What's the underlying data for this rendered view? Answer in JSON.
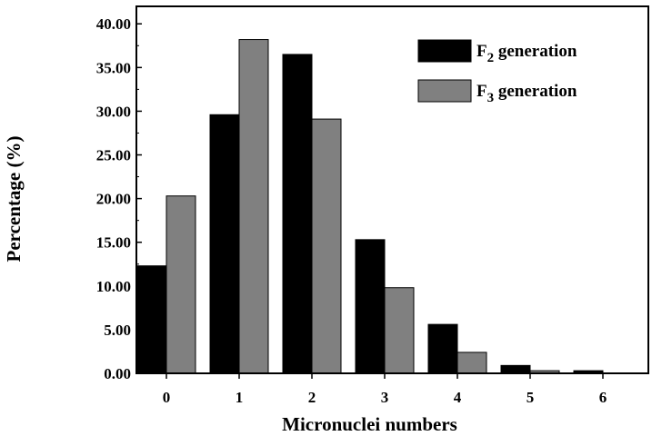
{
  "chart_data": {
    "type": "bar",
    "categories": [
      "0",
      "1",
      "2",
      "3",
      "4",
      "5",
      "6"
    ],
    "series": [
      {
        "name": "F2 generation",
        "name_main": "F",
        "name_sub": "2",
        "name_rest": " generation",
        "color": "#000000",
        "values": [
          12.3,
          29.6,
          36.5,
          15.3,
          5.6,
          0.9,
          0.3
        ]
      },
      {
        "name": "F3 generation",
        "name_main": "F",
        "name_sub": "3",
        "name_rest": " generation",
        "color": "#808080",
        "values": [
          20.3,
          38.2,
          29.1,
          9.8,
          2.4,
          0.3,
          0.0
        ]
      }
    ],
    "xlabel": "Micronuclei numbers",
    "ylabel": "Percentage (%)",
    "ylim": [
      0,
      42
    ],
    "yticks": [
      "0.00",
      "5.00",
      "10.00",
      "15.00",
      "20.00",
      "25.00",
      "30.00",
      "35.00",
      "40.00"
    ],
    "ytick_values": [
      0,
      5,
      10,
      15,
      20,
      25,
      30,
      35,
      40
    ],
    "legend_position": "top-right",
    "grid": false
  }
}
